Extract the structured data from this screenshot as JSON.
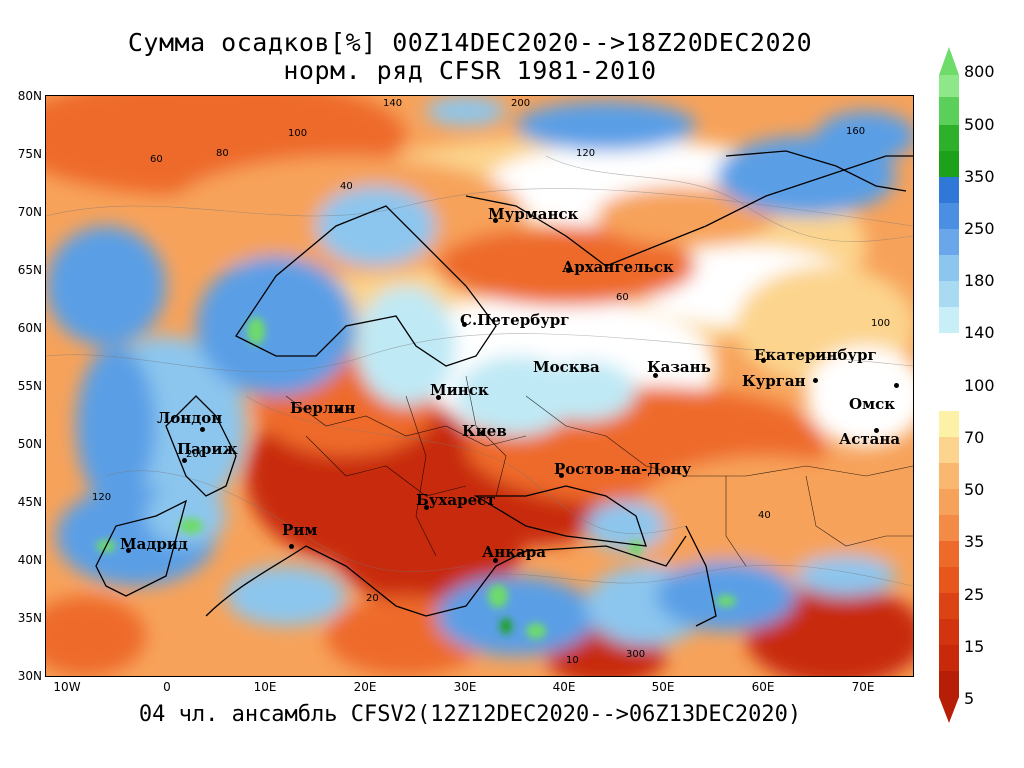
{
  "title_line1": "Сумма осадков[%] 00Z14DEC2020-->18Z20DEC2020",
  "title_line2": "норм. ряд CFSR 1981-2010",
  "footer": "04 чл. ансамбль CFSV2(12Z12DEC2020-->06Z13DEC2020)",
  "lat_labels": [
    "80N",
    "75N",
    "70N",
    "65N",
    "60N",
    "55N",
    "50N",
    "45N",
    "40N",
    "35N",
    "30N"
  ],
  "lon_labels": [
    "10W",
    "0",
    "10E",
    "20E",
    "30E",
    "40E",
    "50E",
    "60E",
    "70E"
  ],
  "colorbar_labels": [
    "800",
    "500",
    "350",
    "250",
    "180",
    "140",
    "100",
    "70",
    "50",
    "35",
    "25",
    "15",
    "5"
  ],
  "colors": {
    "dry_deep": "#c8290b",
    "dry_mid": "#ee6a2a",
    "dry_light": "#f7a25a",
    "dry_pale": "#fcd48d",
    "neutral": "#ffffff",
    "wet_pale": "#bfe9f5",
    "wet_light": "#8cc6ee",
    "wet_mid": "#5a9fe6",
    "wet_deep": "#2f78d8",
    "green_light": "#6edb6a",
    "green_deep": "#1da11b"
  },
  "cities": [
    {
      "name": "Мурманск"
    },
    {
      "name": "Архангельск"
    },
    {
      "name": "С.Петербург"
    },
    {
      "name": "Москва"
    },
    {
      "name": "Казань"
    },
    {
      "name": "Екатеринбург"
    },
    {
      "name": "Курган"
    },
    {
      "name": "Омск"
    },
    {
      "name": "Астана"
    },
    {
      "name": "Минск"
    },
    {
      "name": "Киев"
    },
    {
      "name": "Берлин"
    },
    {
      "name": "Лондон"
    },
    {
      "name": "Париж"
    },
    {
      "name": "Ростов-на-Дону"
    },
    {
      "name": "Бухарест"
    },
    {
      "name": "Рим"
    },
    {
      "name": "Мадрид"
    },
    {
      "name": "Анкара"
    }
  ],
  "contour_labels": [
    "200",
    "140",
    "100",
    "80",
    "60",
    "40",
    "120",
    "160",
    "20",
    "10",
    "300"
  ]
}
